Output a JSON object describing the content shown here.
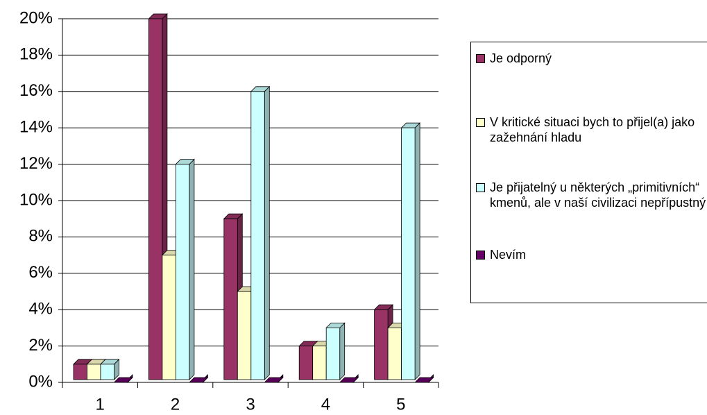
{
  "chart_data": {
    "type": "bar3d",
    "categories": [
      "1",
      "2",
      "3",
      "4",
      "5"
    ],
    "series": [
      {
        "name": "Je odporný",
        "color": "#993366",
        "values": [
          1,
          20,
          9,
          2,
          4
        ]
      },
      {
        "name": "V kritické situaci bych to přijel(a) jako zažehnání hladu",
        "color": "#ffffcc",
        "values": [
          1,
          7,
          5,
          2,
          3
        ]
      },
      {
        "name": "Je přijatelný u některých „primitivních“ kmenů, ale v naší civilizaci nepřípustný",
        "color": "#ccffff",
        "values": [
          1,
          12,
          16,
          3,
          14
        ]
      },
      {
        "name": "Nevím",
        "color": "#660066",
        "values": [
          0,
          0,
          0,
          0,
          0
        ]
      }
    ],
    "ylim": [
      0,
      20
    ],
    "yticks": [
      {
        "value": 0,
        "label": "0%"
      },
      {
        "value": 2,
        "label": "2%"
      },
      {
        "value": 4,
        "label": "4%"
      },
      {
        "value": 6,
        "label": "6%"
      },
      {
        "value": 8,
        "label": "8%"
      },
      {
        "value": 10,
        "label": "10%"
      },
      {
        "value": 12,
        "label": "12%"
      },
      {
        "value": 14,
        "label": "14%"
      },
      {
        "value": 16,
        "label": "16%"
      },
      {
        "value": 18,
        "label": "18%"
      },
      {
        "value": 20,
        "label": "20%"
      }
    ],
    "grid": true,
    "legend": "right"
  }
}
